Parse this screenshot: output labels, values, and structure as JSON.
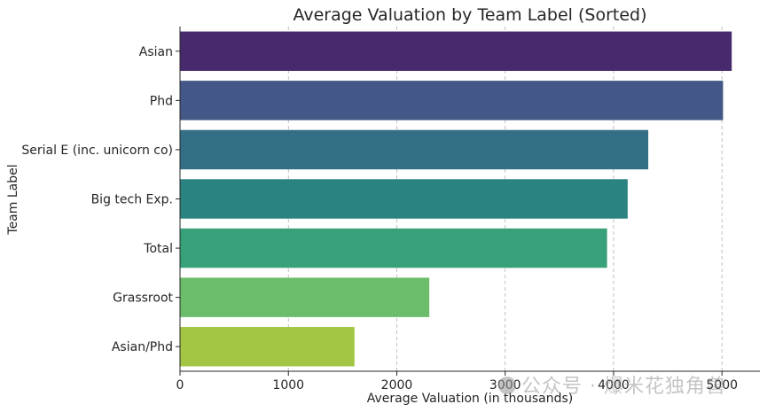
{
  "chart_data": {
    "type": "bar",
    "orientation": "horizontal",
    "title": "Average Valuation by Team Label (Sorted)",
    "xlabel": "Average Valuation (in thousands)",
    "ylabel": "Team Label",
    "categories": [
      "Asian",
      "Phd",
      "Serial E (inc. unicorn co)",
      "Big tech Exp.",
      "Total",
      "Grassroot",
      "Asian/Phd"
    ],
    "values": [
      5090,
      5010,
      4320,
      4130,
      3940,
      2300,
      1610
    ],
    "xlim": [
      0,
      5350
    ],
    "xticks": [
      "0",
      "1000",
      "2000",
      "3000",
      "4000",
      "5000"
    ],
    "grid": "x-dashed",
    "colors": [
      "#472a6d",
      "#435886",
      "#346e85",
      "#2a8380",
      "#39a17a",
      "#6bbd6c",
      "#a3c744"
    ]
  },
  "watermark": {
    "text": "公众号 · 爆米花独角兽",
    "icon": "wechat-icon"
  }
}
